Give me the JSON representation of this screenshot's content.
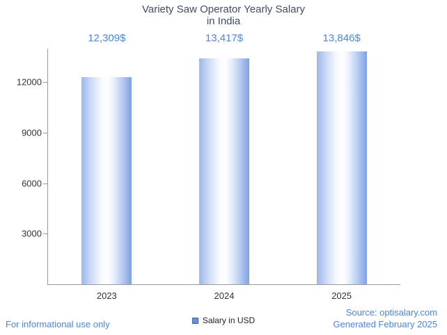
{
  "chart_data": {
    "type": "bar",
    "title": "Variety Saw Operator Yearly Salary in India",
    "title_line1": "Variety Saw Operator Yearly Salary",
    "title_line2": "in India",
    "categories": [
      "2023",
      "2024",
      "2025"
    ],
    "values": [
      12309,
      13417,
      13846
    ],
    "value_labels": [
      "12,309$",
      "13,417$",
      "13,846$"
    ],
    "series": [
      {
        "name": "Salary in USD",
        "values": [
          12309,
          13417,
          13846
        ]
      }
    ],
    "xlabel": "",
    "ylabel": "",
    "ylim": [
      0,
      14000
    ],
    "yticks": [
      3000,
      6000,
      9000,
      12000
    ],
    "grid": false,
    "legend_position": "bottom-center"
  },
  "legend": {
    "label": "Salary in USD"
  },
  "footer": {
    "disclaimer": "For informational use only",
    "source": "Source: optisalary.com",
    "generated": "Generated February 2025"
  },
  "colors": {
    "title": "#3e4c66",
    "accent_blue": "#4b86db",
    "axis": "#9a9a9a",
    "tick_label": "#333333",
    "bar_gradient_edge_left": "#9db7e8",
    "bar_gradient_center": "#ffffff",
    "bar_gradient_edge_right": "#7fa1e2",
    "legend_swatch": "#6a8ed9"
  }
}
